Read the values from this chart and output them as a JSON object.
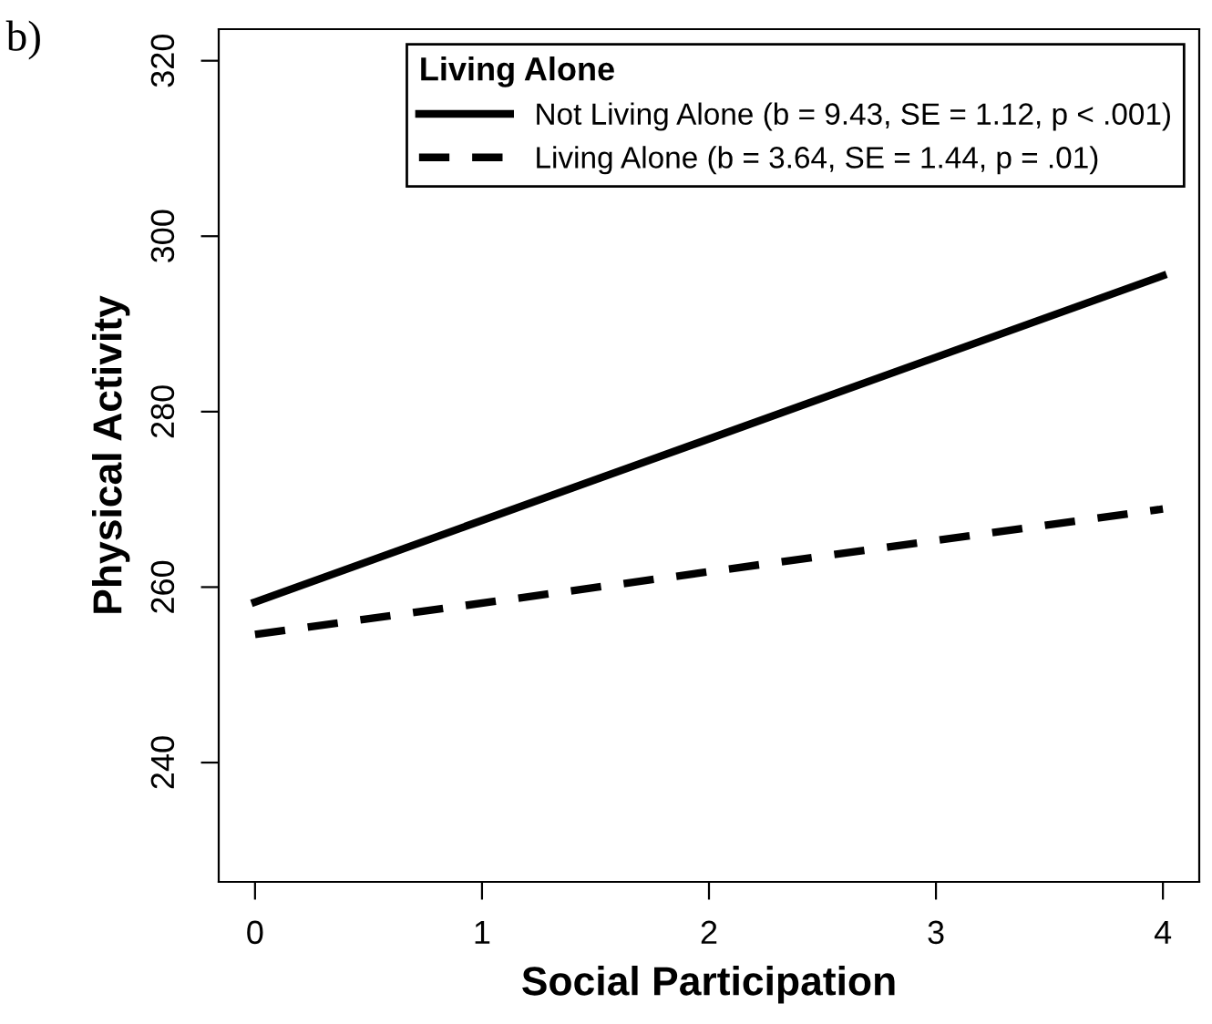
{
  "chart_data": {
    "type": "line",
    "xlabel": "Social Participation",
    "ylabel": "Physical Activity",
    "legend_title": "Living Alone",
    "x": [
      0,
      4
    ],
    "series": [
      {
        "name": "Not Living Alone (b = 9.43, SE = 1.12, p < .001)",
        "color": "#000000",
        "values": [
          258.3,
          295.5
        ],
        "line_style": "solid"
      },
      {
        "name": "Living Alone (b = 3.64, SE = 1.44, p = .01)",
        "color": "#000000",
        "values": [
          254.6,
          268.9
        ],
        "line_style": "dashed"
      }
    ],
    "xlim": [
      -0.16,
      4.16
    ],
    "ylim": [
      226.4,
      323.6
    ],
    "xticks": [
      0,
      1,
      2,
      3,
      4
    ],
    "yticks": [
      240,
      260,
      280,
      300,
      320
    ],
    "legend": "top right",
    "grid": false,
    "marker": "none",
    "annotations": [
      "b)"
    ]
  }
}
